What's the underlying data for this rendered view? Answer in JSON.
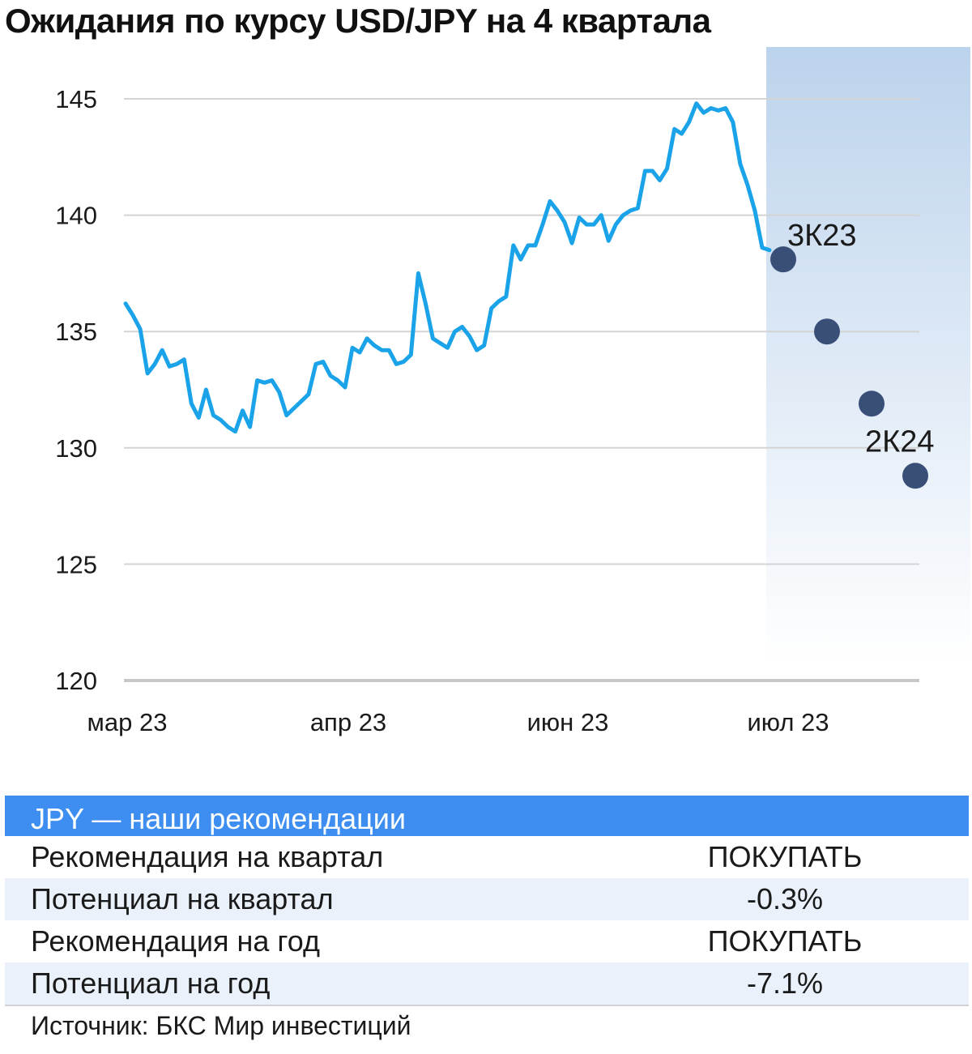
{
  "title": "Ожидания по курсу USD/JPY на 4 квартала",
  "colors": {
    "line": "#1aa3e8",
    "forecast_dot": "#3a4f78",
    "forecast_band": "#bcd3ec",
    "grid": "#d4d4d4",
    "table_header": "#3d8ef0",
    "row_alt": "#eaf1fa"
  },
  "chart_data": {
    "type": "line",
    "title": "Ожидания по курсу USD/JPY на 4 квартала",
    "ylim": [
      120,
      145
    ],
    "y_ticks": [
      "145",
      "140",
      "135",
      "130",
      "125",
      "120"
    ],
    "x_ticks": [
      "мар 23",
      "апр 23",
      "июн 23",
      "июл 23"
    ],
    "grid": true,
    "series": [
      {
        "values": [
          136.2,
          135.7,
          135.1,
          133.2,
          133.6,
          134.2,
          133.5,
          133.6,
          133.8,
          131.9,
          131.3,
          132.5,
          131.4,
          131.2,
          130.9,
          130.7,
          131.6,
          130.9,
          132.9,
          132.8,
          132.9,
          132.4,
          131.4,
          131.7,
          132.0,
          132.3,
          133.6,
          133.7,
          133.1,
          132.9,
          132.6,
          134.3,
          134.1,
          134.7,
          134.4,
          134.2,
          134.2,
          133.6,
          133.7,
          134.0,
          137.5,
          136.2,
          134.7,
          134.5,
          134.3,
          135.0,
          135.2,
          134.8,
          134.2,
          134.4,
          136.0,
          136.3,
          136.5,
          138.7,
          138.1,
          138.7,
          138.7,
          139.6,
          140.6,
          140.2,
          139.7,
          138.8,
          139.9,
          139.6,
          139.6,
          140.0,
          138.9,
          139.6,
          140.0,
          140.2,
          140.3,
          141.9,
          141.9,
          141.5,
          142.0,
          143.7,
          143.5,
          144.0,
          144.8,
          144.4,
          144.6,
          144.5,
          144.6,
          144.0,
          142.2,
          141.3,
          140.2,
          138.6,
          138.5
        ],
        "color": "#1aa3e8"
      }
    ],
    "forecast": {
      "points": [
        {
          "label": "3К23",
          "value": 138.1
        },
        {
          "label": "",
          "value": 135.0
        },
        {
          "label": "",
          "value": 131.9
        },
        {
          "label": "2К24",
          "value": 128.8
        }
      ],
      "color": "#3a4f78"
    }
  },
  "table": {
    "header": "JPY — наши рекомендации",
    "rows": [
      {
        "label": "Рекомендация на квартал",
        "value": "ПОКУПАТЬ"
      },
      {
        "label": "Потенциал на квартал",
        "value": "-0.3%"
      },
      {
        "label": "Рекомендация на год",
        "value": "ПОКУПАТЬ"
      },
      {
        "label": "Потенциал на год",
        "value": "-7.1%"
      }
    ]
  },
  "source": "Источник: БКС Мир инвестиций"
}
